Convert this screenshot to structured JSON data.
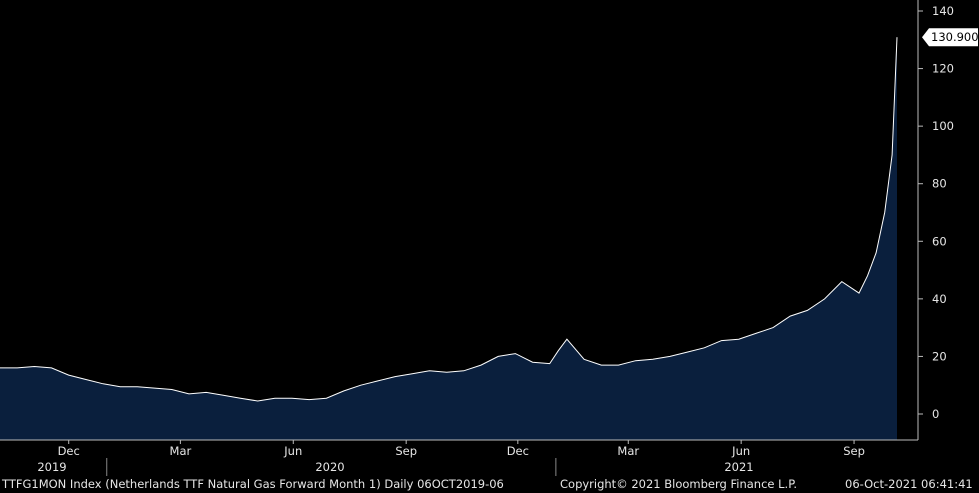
{
  "chart_data": {
    "type": "area",
    "ylim": [
      -10,
      140
    ],
    "y_ticks": [
      140,
      120,
      100,
      80,
      60,
      40,
      20,
      0
    ],
    "x_ticks": [
      "Dec",
      "Mar",
      "Jun",
      "Sep",
      "Dec",
      "Mar",
      "Jun",
      "Sep"
    ],
    "years": [
      "2019",
      "2020",
      "2021"
    ],
    "last_value_label": "130.900",
    "grid": false,
    "colors": {
      "fill": "#0a1f3d",
      "line": "#ffffff",
      "background": "#000000"
    },
    "series": [
      {
        "x": [
          "2019-10-06",
          "2019-10-20",
          "2019-11-03",
          "2019-11-17",
          "2019-12-01",
          "2019-12-15",
          "2019-12-29",
          "2020-01-12",
          "2020-01-26",
          "2020-02-09",
          "2020-02-23",
          "2020-03-08",
          "2020-03-22",
          "2020-04-05",
          "2020-04-19",
          "2020-05-03",
          "2020-05-17",
          "2020-05-31",
          "2020-06-14",
          "2020-06-28",
          "2020-07-12",
          "2020-07-26",
          "2020-08-09",
          "2020-08-23",
          "2020-09-06",
          "2020-09-20",
          "2020-10-04",
          "2020-10-18",
          "2020-11-01",
          "2020-11-15",
          "2020-11-29",
          "2020-12-13",
          "2020-12-27",
          "2021-01-03",
          "2021-01-10",
          "2021-01-24",
          "2021-02-07",
          "2021-02-21",
          "2021-03-07",
          "2021-03-21",
          "2021-04-04",
          "2021-04-18",
          "2021-05-02",
          "2021-05-16",
          "2021-05-30",
          "2021-06-13",
          "2021-06-27",
          "2021-07-11",
          "2021-07-25",
          "2021-08-08",
          "2021-08-22",
          "2021-09-05",
          "2021-09-12",
          "2021-09-19",
          "2021-09-26",
          "2021-10-02",
          "2021-10-06"
        ],
        "values": [
          16,
          16,
          16.5,
          16,
          13.5,
          12,
          10.5,
          9.5,
          9.5,
          9,
          8.5,
          7,
          7.5,
          6.5,
          5.5,
          4.5,
          5.5,
          5.5,
          5,
          5.5,
          8,
          10,
          11.5,
          13,
          14,
          15,
          14.5,
          15,
          17,
          20,
          21,
          18,
          17.5,
          22,
          26,
          19,
          17,
          17,
          18.5,
          19,
          20,
          21.5,
          23,
          25.5,
          26,
          28,
          30,
          34,
          36,
          40,
          46,
          42,
          48,
          56,
          70,
          90,
          130.9
        ]
      }
    ]
  },
  "footer": {
    "left": "TTFG1MON Index (Netherlands TTF Natural Gas Forward Month 1)  Daily 06OCT2019-06",
    "copyright": "Copyright© 2021 Bloomberg Finance L.P.",
    "timestamp": "06-Oct-2021 06:41:41"
  }
}
